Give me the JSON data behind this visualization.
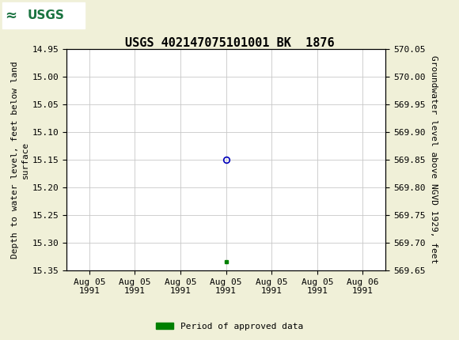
{
  "title": "USGS 402147075101001 BK  1876",
  "header_color": "#1a7340",
  "background_color": "#f0f0d8",
  "plot_bg_color": "#ffffff",
  "ylabel_left": "Depth to water level, feet below land\nsurface",
  "ylabel_right": "Groundwater level above NGVD 1929, feet",
  "ylim_left_top": 14.95,
  "ylim_left_bottom": 15.35,
  "ylim_right_top": 570.05,
  "ylim_right_bottom": 569.65,
  "yticks_left": [
    14.95,
    15.0,
    15.05,
    15.1,
    15.15,
    15.2,
    15.25,
    15.3,
    15.35
  ],
  "yticks_right": [
    570.05,
    570.0,
    569.95,
    569.9,
    569.85,
    569.8,
    569.75,
    569.7,
    569.65
  ],
  "xtick_labels": [
    "Aug 05\n1991",
    "Aug 05\n1991",
    "Aug 05\n1991",
    "Aug 05\n1991",
    "Aug 05\n1991",
    "Aug 05\n1991",
    "Aug 06\n1991"
  ],
  "circle_x_idx": 3,
  "circle_point_y": 15.15,
  "green_x_idx": 3,
  "green_point_y": 15.335,
  "circle_color": "#0000bb",
  "green_color": "#008000",
  "legend_label": "Period of approved data",
  "grid_color": "#c8c8c8",
  "title_fontsize": 11,
  "tick_fontsize": 8,
  "axis_label_fontsize": 8,
  "xlim_left": -0.5,
  "xlim_right": 6.5
}
